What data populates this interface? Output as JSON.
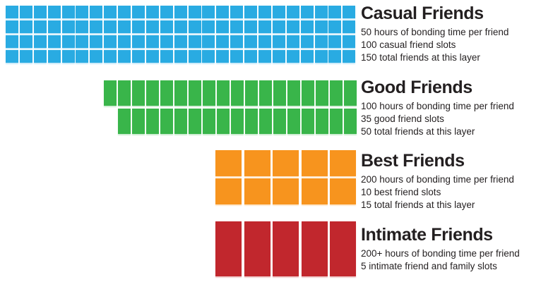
{
  "chart_data": {
    "type": "table",
    "variant": "unit-waffle-grid (each rectangle = one friend slot)",
    "categories": [
      "Casual Friends",
      "Good Friends",
      "Best Friends",
      "Intimate Friends"
    ],
    "series": [
      {
        "name": "hours of bonding time per friend",
        "values": [
          "50",
          "100",
          "200",
          "200+"
        ]
      },
      {
        "name": "friend slots (squares drawn)",
        "values": [
          100,
          35,
          10,
          5
        ]
      },
      {
        "name": "total friends at this layer",
        "values": [
          150,
          50,
          15,
          null
        ]
      }
    ],
    "legend_position": "none",
    "grid": false
  },
  "layers": [
    {
      "id": "casual",
      "title": "Casual Friends",
      "lines": [
        "50 hours of bonding time per friend",
        "100 casual friend slots",
        "150 total friends at this layer"
      ],
      "color": "#29ABE2",
      "slots_total": 100,
      "rows": [
        {
          "cells": 25,
          "offset_cells": 0
        },
        {
          "cells": 25,
          "offset_cells": 0
        },
        {
          "cells": 25,
          "offset_cells": 0
        },
        {
          "cells": 25,
          "offset_cells": 0
        }
      ]
    },
    {
      "id": "good",
      "title": "Good Friends",
      "lines": [
        "100 hours of bonding time per friend",
        "35 good friend slots",
        "50 total friends at this layer"
      ],
      "color": "#39B54A",
      "slots_total": 35,
      "rows": [
        {
          "cells": 18,
          "offset_cells": 0
        },
        {
          "cells": 17,
          "offset_cells": 1
        }
      ]
    },
    {
      "id": "best",
      "title": "Best Friends",
      "lines": [
        "200 hours of bonding time per friend",
        "10 best friend slots",
        "15 total friends at this layer"
      ],
      "color": "#F7941E",
      "slots_total": 10,
      "rows": [
        {
          "cells": 5,
          "offset_cells": 0
        },
        {
          "cells": 5,
          "offset_cells": 0
        }
      ]
    },
    {
      "id": "intimate",
      "title": "Intimate Friends",
      "lines": [
        "200+ hours of bonding time per friend",
        "5 intimate friend and family slots"
      ],
      "color": "#C1272D",
      "slots_total": 5,
      "rows": [
        {
          "cells": 5,
          "offset_cells": 0
        }
      ]
    }
  ]
}
